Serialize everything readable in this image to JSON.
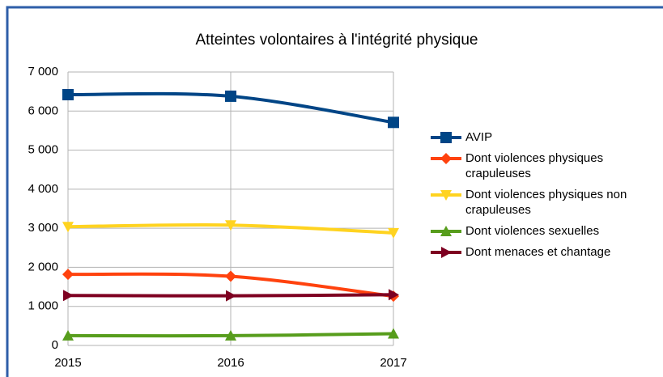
{
  "chart_data": {
    "type": "line",
    "title": "Atteintes volontaires à l'intégrité physique",
    "x": [
      2015,
      2016,
      2017
    ],
    "series": [
      {
        "name": "AVIP",
        "color": "#004586",
        "marker": "square",
        "values": [
          6420,
          6380,
          5710
        ]
      },
      {
        "name": "Dont violences physiques crapuleuses",
        "color": "#ff420e",
        "marker": "diamond",
        "values": [
          1820,
          1770,
          1260
        ]
      },
      {
        "name": "Dont violences physiques non crapuleuses",
        "color": "#ffd320",
        "marker": "triangle-down",
        "values": [
          3040,
          3080,
          2880
        ]
      },
      {
        "name": "Dont violences sexuelles",
        "color": "#579d1c",
        "marker": "triangle-up",
        "values": [
          250,
          250,
          300
        ]
      },
      {
        "name": "Dont menaces et chantage",
        "color": "#7e0021",
        "marker": "triangle-right",
        "values": [
          1280,
          1270,
          1300
        ]
      }
    ],
    "xlim": [
      2015,
      2017
    ],
    "xticks": [
      2015,
      2016,
      2017
    ],
    "ylim": [
      0,
      7000
    ],
    "yticks": [
      0,
      {
        "value": 1000,
        "label": "1 000"
      },
      {
        "value": 2000,
        "label": "2 000"
      },
      {
        "value": 3000,
        "label": "3 000"
      },
      {
        "value": 4000,
        "label": "4 000"
      },
      {
        "value": 5000,
        "label": "5 000"
      },
      {
        "value": 6000,
        "label": "6 000"
      },
      {
        "value": 7000,
        "label": "7 000"
      }
    ],
    "grid": true,
    "legend": "right"
  }
}
